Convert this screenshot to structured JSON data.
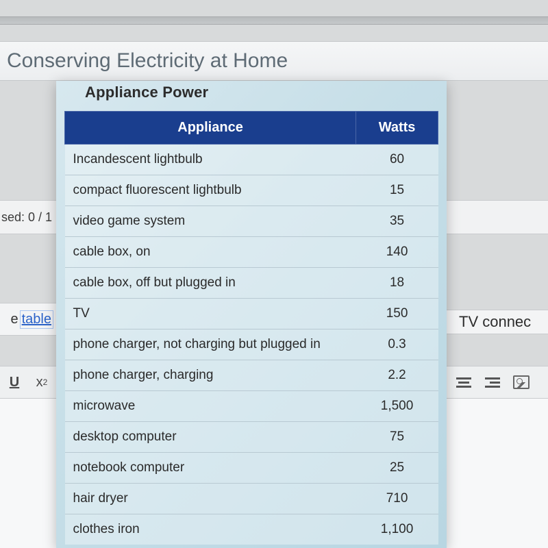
{
  "title": "Conserving Electricity at Home",
  "panel_title": "Appliance Power",
  "status_text": "sed: 0 / 1",
  "link_prefix": "e",
  "link_text": "table",
  "right_text": "TV connec",
  "toolbar": {
    "underline": "U",
    "superscript_base": "x",
    "superscript_exp": "2"
  },
  "table": {
    "header_bg": "#1a3e8e",
    "header_fg": "#ffffff",
    "columns": [
      "Appliance",
      "Watts"
    ],
    "rows": [
      [
        "Incandescent lightbulb",
        "60"
      ],
      [
        "compact fluorescent lightbulb",
        "15"
      ],
      [
        "video game system",
        "35"
      ],
      [
        "cable box, on",
        "140"
      ],
      [
        "cable box, off but plugged in",
        "18"
      ],
      [
        "TV",
        "150"
      ],
      [
        "phone charger, not charging but plugged in",
        "0.3"
      ],
      [
        "phone charger, charging",
        "2.2"
      ],
      [
        "microwave",
        "1,500"
      ],
      [
        "desktop computer",
        "75"
      ],
      [
        "notebook computer",
        "25"
      ],
      [
        "hair dryer",
        "710"
      ],
      [
        "clothes iron",
        "1,100"
      ]
    ]
  }
}
